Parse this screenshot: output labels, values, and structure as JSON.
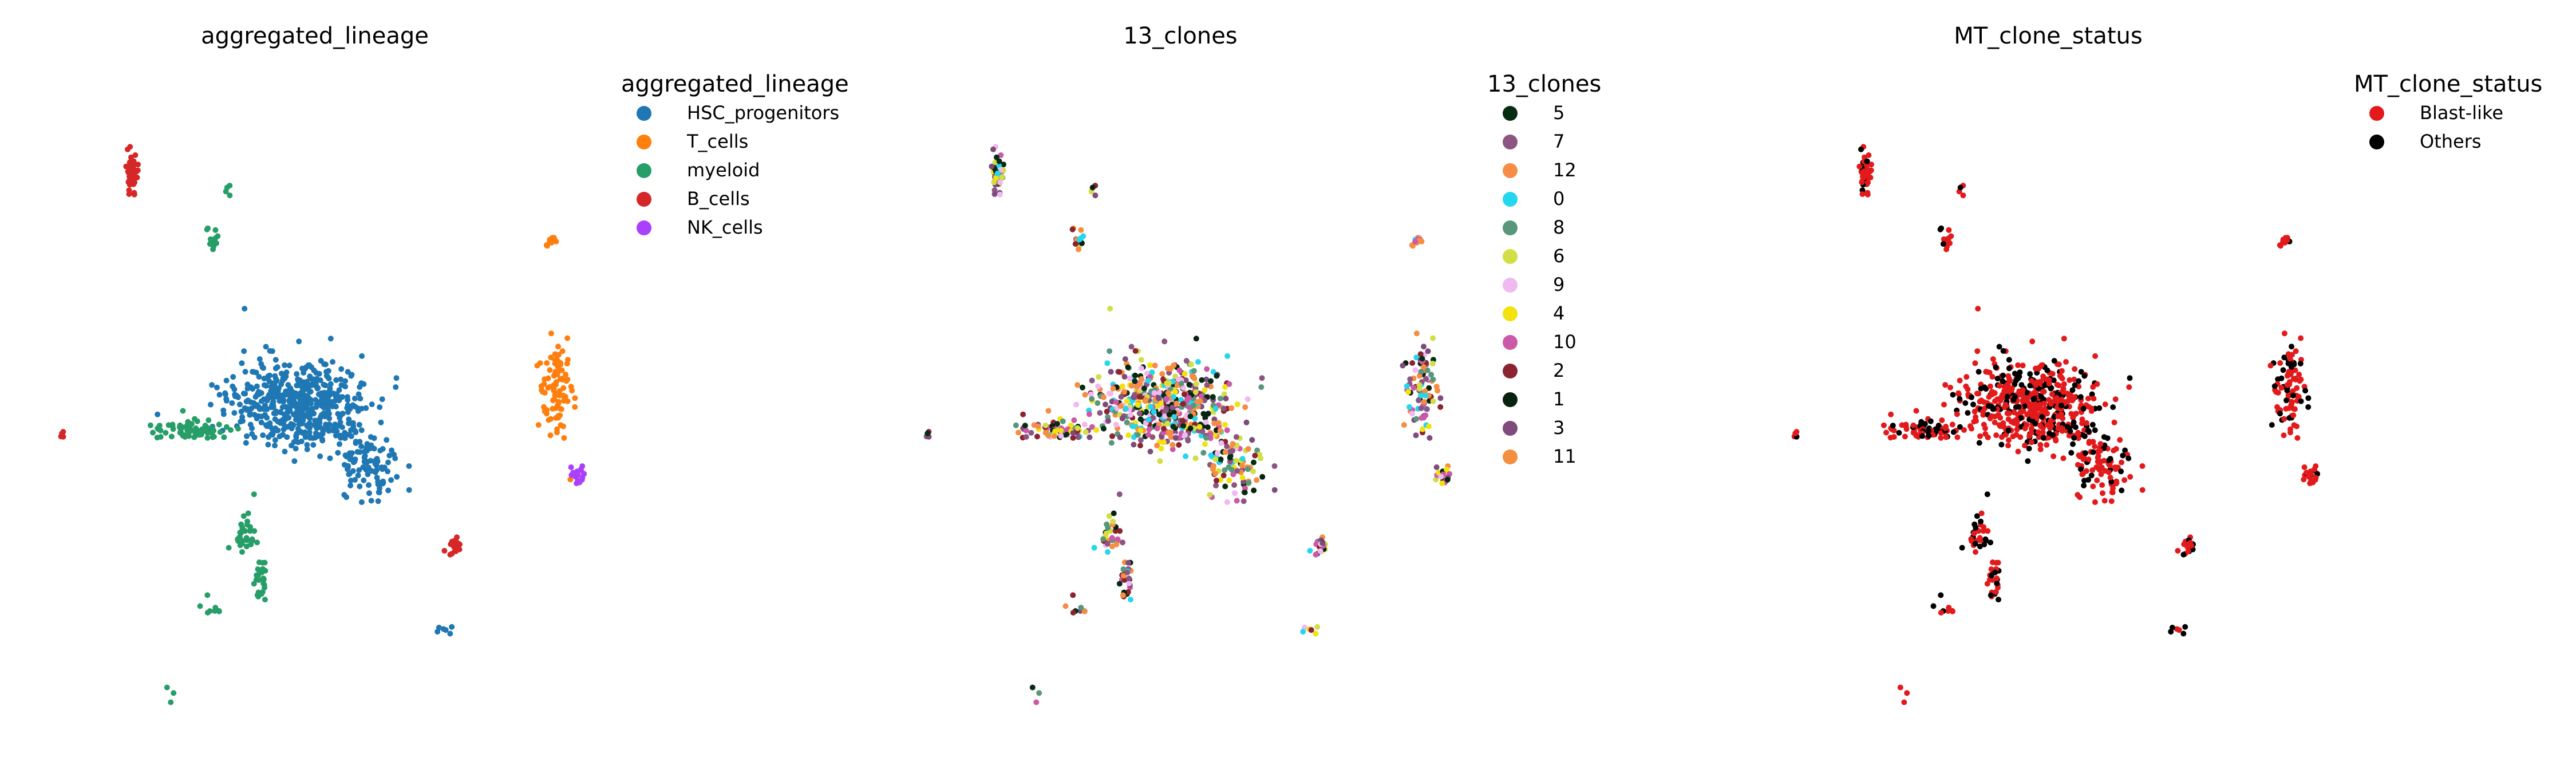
{
  "figure": {
    "description_free": true
  },
  "chart_data": [
    {
      "type": "scatter",
      "title": "aggregated_lineage",
      "xlabel": "",
      "ylabel": "",
      "axes_visible": false,
      "legend": {
        "title": "aggregated_lineage",
        "placement": "right",
        "entries": [
          {
            "label": "HSC_progenitors",
            "color": "#1f77b4"
          },
          {
            "label": "T_cells",
            "color": "#ff7f0e"
          },
          {
            "label": "myeloid",
            "color": "#279e68"
          },
          {
            "label": "B_cells",
            "color": "#d62728"
          },
          {
            "label": "NK_cells",
            "color": "#aa40fc"
          }
        ]
      },
      "clusters": [
        {
          "category": "HSC_progenitors",
          "center": [
            0.47,
            0.5
          ],
          "spread": [
            0.13,
            0.07
          ],
          "n": 520
        },
        {
          "category": "HSC_progenitors",
          "center": [
            0.6,
            0.6
          ],
          "spread": [
            0.05,
            0.05
          ],
          "n": 90
        },
        {
          "category": "HSC_progenitors",
          "center": [
            0.74,
            0.85
          ],
          "spread": [
            0.02,
            0.01
          ],
          "n": 6
        },
        {
          "category": "myeloid",
          "center": [
            0.27,
            0.54
          ],
          "spread": [
            0.06,
            0.015
          ],
          "n": 70
        },
        {
          "category": "myeloid",
          "center": [
            0.37,
            0.7
          ],
          "spread": [
            0.025,
            0.04
          ],
          "n": 30
        },
        {
          "category": "myeloid",
          "center": [
            0.4,
            0.77
          ],
          "spread": [
            0.02,
            0.03
          ],
          "n": 25
        },
        {
          "category": "myeloid",
          "center": [
            0.31,
            0.25
          ],
          "spread": [
            0.01,
            0.02
          ],
          "n": 14
        },
        {
          "category": "myeloid",
          "center": [
            0.31,
            0.82
          ],
          "spread": [
            0.02,
            0.03
          ],
          "n": 8
        },
        {
          "category": "myeloid",
          "center": [
            0.34,
            0.17
          ],
          "spread": [
            0.01,
            0.01
          ],
          "n": 4
        },
        {
          "category": "myeloid",
          "center": [
            0.23,
            0.95
          ],
          "spread": [
            0.01,
            0.02
          ],
          "n": 3
        },
        {
          "category": "B_cells",
          "center": [
            0.16,
            0.14
          ],
          "spread": [
            0.01,
            0.03
          ],
          "n": 50
        },
        {
          "category": "B_cells",
          "center": [
            0.76,
            0.72
          ],
          "spread": [
            0.015,
            0.015
          ],
          "n": 25
        },
        {
          "category": "B_cells",
          "center": [
            0.03,
            0.55
          ],
          "spread": [
            0.005,
            0.005
          ],
          "n": 5
        },
        {
          "category": "T_cells",
          "center": [
            0.94,
            0.25
          ],
          "spread": [
            0.01,
            0.01
          ],
          "n": 12
        },
        {
          "category": "T_cells",
          "center": [
            0.95,
            0.48
          ],
          "spread": [
            0.03,
            0.08
          ],
          "n": 90
        },
        {
          "category": "NK_cells",
          "center": [
            0.99,
            0.61
          ],
          "spread": [
            0.015,
            0.015
          ],
          "n": 20
        }
      ]
    },
    {
      "type": "scatter",
      "title": "13_clones",
      "xlabel": "",
      "ylabel": "",
      "axes_visible": false,
      "legend": {
        "title": "13_clones",
        "placement": "right",
        "entries": [
          {
            "label": "5",
            "color": "#052d14"
          },
          {
            "label": "7",
            "color": "#8c5582"
          },
          {
            "label": "12",
            "color": "#f68c45"
          },
          {
            "label": "0",
            "color": "#24d7ee"
          },
          {
            "label": "8",
            "color": "#58977c"
          },
          {
            "label": "6",
            "color": "#d1de45"
          },
          {
            "label": "9",
            "color": "#f0b9f0"
          },
          {
            "label": "4",
            "color": "#f2e20d"
          },
          {
            "label": "10",
            "color": "#cc59a8"
          },
          {
            "label": "2",
            "color": "#8b2430"
          },
          {
            "label": "1",
            "color": "#08220f"
          },
          {
            "label": "3",
            "color": "#7f4b7b"
          },
          {
            "label": "11",
            "color": "#f48f3f"
          }
        ]
      }
    },
    {
      "type": "scatter",
      "title": "MT_clone_status",
      "xlabel": "",
      "ylabel": "",
      "axes_visible": false,
      "legend": {
        "title": "MT_clone_status",
        "placement": "right",
        "entries": [
          {
            "label": "Blast-like",
            "color": "#e31a1c"
          },
          {
            "label": "Others",
            "color": "#000000"
          }
        ]
      }
    }
  ]
}
